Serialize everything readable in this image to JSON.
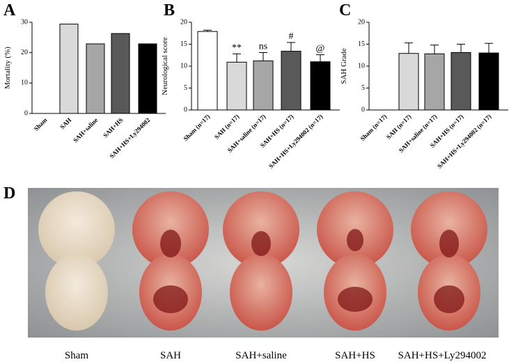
{
  "chart_data": [
    {
      "type": "bar",
      "panel_label": "A",
      "ylabel": "Mortality (%)",
      "categories": [
        "Sham",
        "SAH",
        "SAH+saline",
        "SAH+HS",
        "SAH+HS+Ly294002"
      ],
      "values": [
        0,
        29.4,
        22.9,
        26.3,
        22.9
      ],
      "colors": [
        "#ffffff",
        "#d9d9d9",
        "#a6a6a6",
        "#595959",
        "#000000"
      ],
      "ylim": [
        0,
        30
      ],
      "yticks": [
        0,
        10,
        20,
        30
      ]
    },
    {
      "type": "bar",
      "panel_label": "B",
      "ylabel": "Neurological score",
      "categories": [
        "Sham (n=17)",
        "SAH (n=17)",
        "SAH+saline (n=17)",
        "SAH+HS (n=17)",
        "SAH+HS+Ly294002 (n=17)"
      ],
      "values": [
        17.9,
        10.9,
        11.2,
        13.4,
        11.0
      ],
      "errors": [
        0.3,
        1.9,
        1.9,
        2.0,
        1.6
      ],
      "annotations": [
        null,
        "**",
        "ns",
        "#",
        "@"
      ],
      "colors": [
        "#ffffff",
        "#d9d9d9",
        "#a6a6a6",
        "#595959",
        "#000000"
      ],
      "ylim": [
        0,
        20
      ],
      "yticks": [
        0,
        5,
        10,
        15,
        20
      ]
    },
    {
      "type": "bar",
      "panel_label": "C",
      "ylabel": "SAH Grade",
      "categories": [
        "Sham (n=17)",
        "SAH (n=17)",
        "SAH+saline (n=17)",
        "SAH+HS (n=17)",
        "SAH+HS+Ly294002 (n=17)"
      ],
      "values": [
        0,
        12.9,
        12.8,
        13.1,
        13.0
      ],
      "errors": [
        null,
        2.4,
        2.0,
        1.9,
        2.2
      ],
      "colors": [
        "#ffffff",
        "#d9d9d9",
        "#a6a6a6",
        "#595959",
        "#000000"
      ],
      "ylim": [
        0,
        20
      ],
      "yticks": [
        0,
        5,
        10,
        15,
        20
      ]
    }
  ],
  "photo_panel": {
    "panel_label": "D",
    "captions": [
      "Sham",
      "SAH",
      "SAH+saline",
      "SAH+HS",
      "SAH+HS+Ly294002"
    ]
  }
}
